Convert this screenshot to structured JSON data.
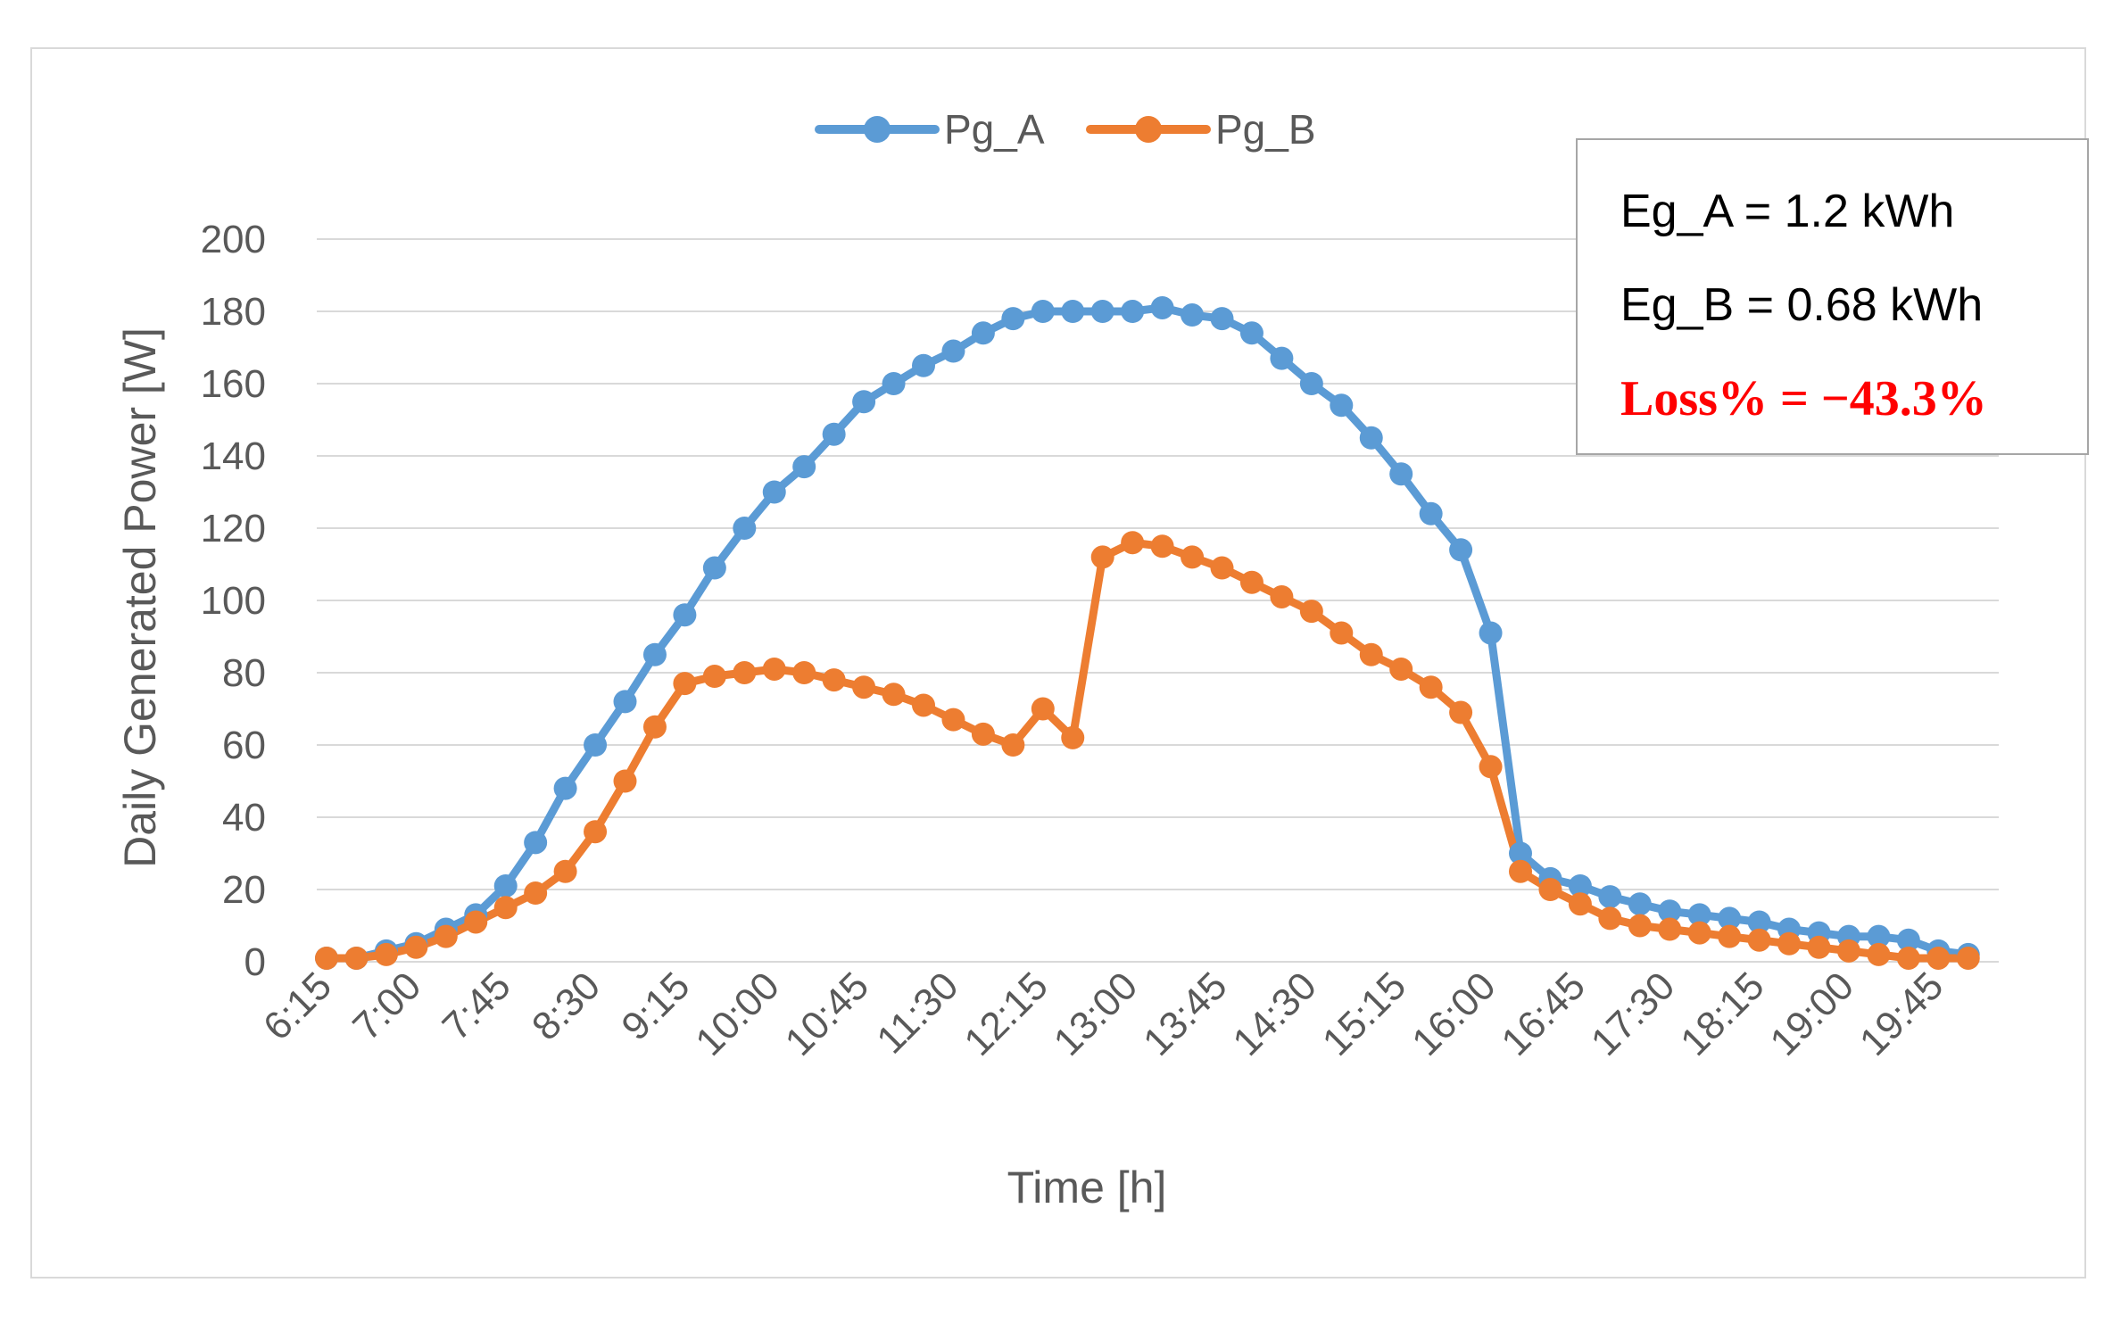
{
  "chart_data": {
    "type": "line",
    "title": "",
    "xlabel": "Time [h]",
    "ylabel": "Daily Generated Power [W]",
    "ylim": [
      0,
      200
    ],
    "yticks": [
      0,
      20,
      40,
      60,
      80,
      100,
      120,
      140,
      160,
      180,
      200
    ],
    "grid": true,
    "legend": "top-center",
    "x": [
      "6:15",
      "6:30",
      "6:45",
      "7:00",
      "7:15",
      "7:30",
      "7:45",
      "8:00",
      "8:15",
      "8:30",
      "8:45",
      "9:00",
      "9:15",
      "9:30",
      "9:45",
      "10:00",
      "10:15",
      "10:30",
      "10:45",
      "11:00",
      "11:15",
      "11:30",
      "11:45",
      "12:00",
      "12:15",
      "12:30",
      "12:45",
      "13:00",
      "13:15",
      "13:30",
      "13:45",
      "14:00",
      "14:15",
      "14:30",
      "14:45",
      "15:00",
      "15:15",
      "15:30",
      "15:45",
      "16:00",
      "16:15",
      "16:30",
      "16:45",
      "17:00",
      "17:15",
      "17:30",
      "17:45",
      "18:00",
      "18:15",
      "18:30",
      "18:45",
      "19:00",
      "19:15",
      "19:30",
      "19:45",
      "20:00"
    ],
    "xtick_labels": [
      "6:15",
      "7:00",
      "7:45",
      "8:30",
      "9:15",
      "10:00",
      "10:45",
      "11:30",
      "12:15",
      "13:00",
      "13:45",
      "14:30",
      "15:15",
      "16:00",
      "16:45",
      "17:30",
      "18:15",
      "19:00",
      "19:45"
    ],
    "series": [
      {
        "name": "Pg_A",
        "color": "#5b9bd5",
        "values": [
          1,
          1,
          3,
          5,
          9,
          13,
          21,
          33,
          48,
          60,
          72,
          85,
          96,
          109,
          120,
          130,
          137,
          146,
          155,
          160,
          165,
          169,
          174,
          178,
          180,
          180,
          180,
          180,
          181,
          179,
          178,
          174,
          167,
          160,
          154,
          145,
          135,
          124,
          114,
          91,
          30,
          23,
          21,
          18,
          16,
          14,
          13,
          12,
          11,
          9,
          8,
          7,
          7,
          6,
          3,
          2
        ]
      },
      {
        "name": "Pg_B",
        "color": "#ed7d31",
        "values": [
          1,
          1,
          2,
          4,
          7,
          11,
          15,
          19,
          25,
          36,
          50,
          65,
          77,
          79,
          80,
          81,
          80,
          78,
          76,
          74,
          71,
          67,
          63,
          60,
          70,
          62,
          112,
          116,
          115,
          112,
          109,
          105,
          101,
          97,
          91,
          85,
          81,
          76,
          69,
          54,
          25,
          20,
          16,
          12,
          10,
          9,
          8,
          7,
          6,
          5,
          4,
          3,
          2,
          1,
          1,
          1
        ]
      }
    ],
    "annotations": {
      "energy_a": "Eg_A = 1.2 kWh",
      "energy_b": "Eg_B = 0.68 kWh",
      "loss": "Loss% = −43.3%"
    }
  }
}
